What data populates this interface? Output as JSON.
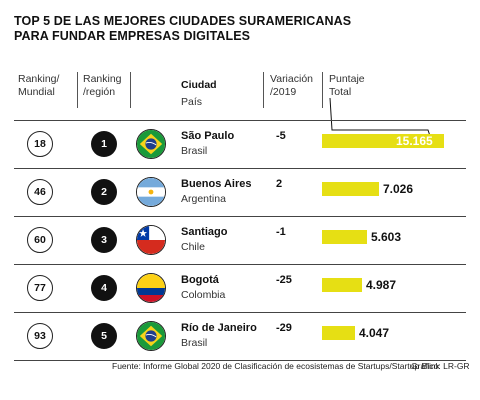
{
  "title_lines": [
    "TOP 5 DE LAS MEJORES CIUDADES SURAMERICANAS",
    "PARA FUNDAR EMPRESAS DIGITALES"
  ],
  "headers": {
    "ranking_mundial": [
      "Ranking/",
      "Mundial"
    ],
    "ranking_region": [
      "Ranking",
      "/región"
    ],
    "ciudad": "Ciudad",
    "pais": "País",
    "variacion": [
      "Variación",
      "/2019"
    ],
    "puntaje": [
      "Puntaje",
      "Total"
    ]
  },
  "colors": {
    "bar": "#e6df14",
    "text": "#111111"
  },
  "chart_data": {
    "type": "bar",
    "categories": [
      "São Paulo",
      "Buenos Aires",
      "Santiago",
      "Bogotá",
      "Río de Janeiro"
    ],
    "values": [
      15.165,
      7.026,
      5.603,
      4.987,
      4.047
    ],
    "value_labels": [
      "15.165",
      "7.026",
      "5.603",
      "4.987",
      "4.047"
    ],
    "orientation": "horizontal",
    "xlim": [
      0,
      15.165
    ],
    "title": "TOP 5 DE LAS MEJORES CIUDADES SURAMERICANAS PARA FUNDAR EMPRESAS DIGITALES",
    "xlabel": "Puntaje Total",
    "ylabel": "Ciudad"
  },
  "rows": [
    {
      "ranking_mundial": "18",
      "ranking_region": "1",
      "ciudad": "São Paulo",
      "pais": "Brasil",
      "variacion": "-5",
      "flag": "brazil-flag-icon"
    },
    {
      "ranking_mundial": "46",
      "ranking_region": "2",
      "ciudad": "Buenos Aires",
      "pais": "Argentina",
      "variacion": "2",
      "flag": "argentina-flag-icon"
    },
    {
      "ranking_mundial": "60",
      "ranking_region": "3",
      "ciudad": "Santiago",
      "pais": "Chile",
      "variacion": "-1",
      "flag": "chile-flag-icon"
    },
    {
      "ranking_mundial": "77",
      "ranking_region": "4",
      "ciudad": "Bogotá",
      "pais": "Colombia",
      "variacion": "-25",
      "flag": "colombia-flag-icon"
    },
    {
      "ranking_mundial": "93",
      "ranking_region": "5",
      "ciudad": "Río de Janeiro",
      "pais": "Brasil",
      "variacion": "-29",
      "flag": "brazil-flag-icon"
    }
  ],
  "footer": {
    "source": "Fuente: Informe Global 2020 de Clasificación de ecosistemas de Startups/Startup Blink",
    "credit": "Gráfico: LR-GR"
  }
}
